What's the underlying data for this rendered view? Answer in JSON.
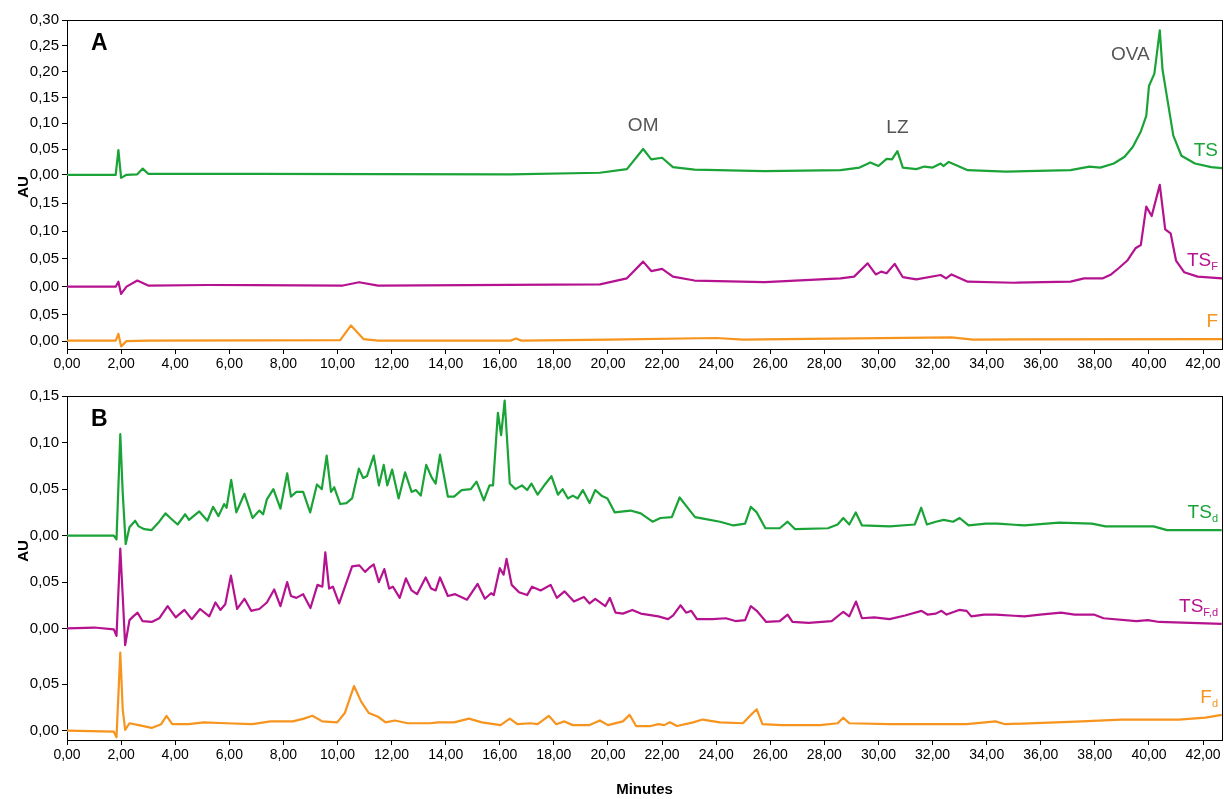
{
  "chart_data": [
    {
      "type": "line",
      "ylabel": "AU",
      "annotations": [
        "A",
        {
          "text": "OM",
          "x": 21.3,
          "y": 0.05
        },
        {
          "text": "LZ",
          "x": 30.7,
          "y": 0.046
        },
        {
          "text": "OVA",
          "x": 40.4,
          "y": 0.28
        }
      ],
      "xlim": [
        0,
        42.7
      ],
      "ylim": [
        -0.012,
        0.3
      ],
      "yticks": [
        {
          "value": 0,
          "label": "0,00"
        },
        {
          "value": 0.05,
          "label": "0,05"
        },
        {
          "value": 0.1,
          "label": "0,10"
        },
        {
          "value": 0.15,
          "label": "0,15"
        },
        {
          "value": 0.2,
          "label": "0,20"
        },
        {
          "value": 0.25,
          "label": "0,25"
        },
        {
          "value": 0.3,
          "label": "0,30"
        }
      ],
      "tick_labels": "y",
      "series": [
        {
          "name": "TS",
          "color": "#1aa336",
          "x": [
            0,
            1.8,
            1.9,
            2.0,
            2.2,
            2.6,
            2.8,
            3.0,
            16.4,
            19.7,
            20.7,
            21.3,
            21.6,
            22.0,
            22.4,
            23.2,
            25.8,
            28.6,
            29.3,
            29.7,
            30.0,
            30.3,
            30.5,
            30.7,
            30.9,
            31.4,
            31.7,
            32.0,
            32.3,
            32.4,
            32.6,
            33.3,
            34.7,
            37.1,
            37.8,
            38.2,
            38.7,
            39.1,
            39.4,
            39.7,
            39.9,
            40.0,
            40.2,
            40.4,
            40.5,
            40.7,
            40.9,
            41.2,
            41.7,
            42.3,
            42.7
          ],
          "values": [
            0,
            0,
            0.048,
            -0.006,
            0,
            0.001,
            0.012,
            0.002,
            0.001,
            0.004,
            0.011,
            0.05,
            0.03,
            0.033,
            0.015,
            0.01,
            0.007,
            0.009,
            0.014,
            0.024,
            0.017,
            0.031,
            0.03,
            0.046,
            0.014,
            0.011,
            0.016,
            0.014,
            0.022,
            0.017,
            0.025,
            0.009,
            0.006,
            0.009,
            0.016,
            0.014,
            0.022,
            0.035,
            0.054,
            0.084,
            0.114,
            0.172,
            0.196,
            0.28,
            0.204,
            0.14,
            0.076,
            0.037,
            0.022,
            0.015,
            0.013
          ]
        }
      ]
    },
    {
      "type": "line",
      "xlim": [
        0,
        42.7
      ],
      "ylim": [
        -0.015,
        0.19
      ],
      "yticks": [
        {
          "value": 0,
          "label": "0,00"
        },
        {
          "value": 0.05,
          "label": "0,05"
        },
        {
          "value": 0.1,
          "label": "0,10"
        },
        {
          "value": 0.15,
          "label": "0,15"
        }
      ],
      "tick_labels": "y",
      "series": [
        {
          "name": "TS$_{F}$",
          "color": "#b5128f",
          "x": [
            0,
            1.8,
            1.9,
            2.0,
            2.2,
            2.6,
            3.0,
            5.2,
            10.2,
            10.8,
            11.5,
            19.7,
            20.7,
            21.3,
            21.6,
            22.0,
            22.4,
            23.2,
            25.8,
            28.6,
            29.1,
            29.6,
            29.9,
            30.1,
            30.3,
            30.6,
            30.9,
            31.4,
            32.3,
            32.5,
            32.7,
            33.3,
            35.0,
            37.1,
            37.6,
            38.3,
            38.6,
            38.9,
            39.2,
            39.5,
            39.7,
            39.9,
            40.1,
            40.4,
            40.6,
            40.8,
            41.0,
            41.3,
            41.8,
            42.7
          ],
          "values": [
            0,
            0,
            0.009,
            -0.013,
            0,
            0.011,
            0.002,
            0.003,
            0.002,
            0.008,
            0.002,
            0.004,
            0.015,
            0.045,
            0.028,
            0.032,
            0.018,
            0.011,
            0.008,
            0.015,
            0.018,
            0.042,
            0.022,
            0.027,
            0.024,
            0.041,
            0.017,
            0.013,
            0.021,
            0.015,
            0.022,
            0.009,
            0.007,
            0.009,
            0.015,
            0.015,
            0.022,
            0.034,
            0.047,
            0.069,
            0.075,
            0.144,
            0.127,
            0.183,
            0.103,
            0.096,
            0.047,
            0.026,
            0.018,
            0.015
          ]
        }
      ]
    },
    {
      "type": "line",
      "xlim": [
        0,
        42.7
      ],
      "xticks": [
        {
          "value": 0,
          "label": "0,00"
        },
        {
          "value": 2,
          "label": "2,00"
        },
        {
          "value": 4,
          "label": "4,00"
        },
        {
          "value": 6,
          "label": "6,00"
        },
        {
          "value": 8,
          "label": "8,00"
        },
        {
          "value": 10,
          "label": "10,00"
        },
        {
          "value": 12,
          "label": "12,00"
        },
        {
          "value": 14,
          "label": "14,00"
        },
        {
          "value": 16,
          "label": "16,00"
        },
        {
          "value": 18,
          "label": "18,00"
        },
        {
          "value": 20,
          "label": "20,00"
        },
        {
          "value": 22,
          "label": "22,00"
        },
        {
          "value": 24,
          "label": "24,00"
        },
        {
          "value": 26,
          "label": "26,00"
        },
        {
          "value": 28,
          "label": "28,00"
        },
        {
          "value": 30,
          "label": "30,00"
        },
        {
          "value": 32,
          "label": "32,00"
        },
        {
          "value": 34,
          "label": "34,00"
        },
        {
          "value": 36,
          "label": "36,00"
        },
        {
          "value": 38,
          "label": "38,00"
        },
        {
          "value": 40,
          "label": "40,00"
        },
        {
          "value": 42,
          "label": "42,00"
        }
      ],
      "ylim": [
        -0.015,
        0.088
      ],
      "yticks": [
        {
          "value": 0,
          "label": "0,00"
        },
        {
          "value": 0.05,
          "label": "0,05"
        }
      ],
      "series": [
        {
          "name": "F",
          "color": "#f7941d",
          "x": [
            0,
            1.8,
            1.9,
            2.0,
            2.2,
            3.0,
            10.1,
            10.5,
            10.96,
            11.5,
            16.4,
            16.6,
            16.8,
            20.0,
            24.0,
            25.0,
            32.7,
            33.5,
            42.7
          ],
          "values": [
            0.001,
            0.001,
            0.014,
            -0.01,
            0,
            0.001,
            0.002,
            0.03,
            0.004,
            0.001,
            0.001,
            0.005,
            0.001,
            0.003,
            0.006,
            0.003,
            0.007,
            0.003,
            0.004
          ]
        }
      ]
    },
    {
      "type": "line",
      "ylabel": "AU",
      "annotations": [
        "B"
      ],
      "xlim": [
        0,
        42.7
      ],
      "ylim": [
        -0.01,
        0.15
      ],
      "yticks": [
        {
          "value": 0,
          "label": "0,00"
        },
        {
          "value": 0.05,
          "label": "0,05"
        },
        {
          "value": 0.1,
          "label": "0,10"
        },
        {
          "value": 0.15,
          "label": "0,15"
        }
      ],
      "tick_labels": "y",
      "series": [
        {
          "name": "TS$_{d}$",
          "color": "#1aa336",
          "x": [
            0,
            1.73,
            1.83,
            1.97,
            2.06,
            2.17,
            2.31,
            2.52,
            2.65,
            2.86,
            3.13,
            3.41,
            3.64,
            3.82,
            4.09,
            4.37,
            4.51,
            4.89,
            5.19,
            5.4,
            5.6,
            5.81,
            5.9,
            6.07,
            6.26,
            6.56,
            6.86,
            7.11,
            7.25,
            7.39,
            7.63,
            7.89,
            8.14,
            8.28,
            8.48,
            8.73,
            8.99,
            9.24,
            9.42,
            9.6,
            9.76,
            9.88,
            10.1,
            10.33,
            10.54,
            10.79,
            10.95,
            11.09,
            11.34,
            11.53,
            11.71,
            11.84,
            12.02,
            12.26,
            12.5,
            12.74,
            12.9,
            13.08,
            13.28,
            13.49,
            13.63,
            13.79,
            14.08,
            14.31,
            14.59,
            14.93,
            15.14,
            15.41,
            15.62,
            15.75,
            15.93,
            16.05,
            16.18,
            16.37,
            16.58,
            16.82,
            17.01,
            17.17,
            17.4,
            17.67,
            17.91,
            18.15,
            18.32,
            18.52,
            18.7,
            18.88,
            19.07,
            19.32,
            19.53,
            19.76,
            19.98,
            20.25,
            20.83,
            21.21,
            21.65,
            21.94,
            22.36,
            22.65,
            23.0,
            23.22,
            23.57,
            24.14,
            24.64,
            25.07,
            25.28,
            25.5,
            25.82,
            26.35,
            26.64,
            26.92,
            28.13,
            28.49,
            28.7,
            28.92,
            29.16,
            29.39,
            30.41,
            31.34,
            31.58,
            31.79,
            32.12,
            32.41,
            32.76,
            33.0,
            33.33,
            33.97,
            34.4,
            35.4,
            36.68,
            37.89,
            38.39,
            40.17,
            40.67,
            42.69
          ],
          "values": [
            0,
            0,
            -0.004,
            0.109,
            0.046,
            -0.009,
            0.009,
            0.016,
            0.01,
            0.007,
            0.006,
            0.015,
            0.024,
            0.019,
            0.012,
            0.023,
            0.017,
            0.026,
            0.016,
            0.031,
            0.021,
            0.034,
            0.03,
            0.06,
            0.025,
            0.045,
            0.019,
            0.027,
            0.023,
            0.039,
            0.05,
            0.029,
            0.067,
            0.042,
            0.047,
            0.047,
            0.025,
            0.055,
            0.05,
            0.086,
            0.047,
            0.052,
            0.034,
            0.035,
            0.04,
            0.072,
            0.062,
            0.064,
            0.086,
            0.054,
            0.076,
            0.054,
            0.071,
            0.04,
            0.068,
            0.047,
            0.049,
            0.043,
            0.076,
            0.062,
            0.056,
            0.087,
            0.042,
            0.042,
            0.049,
            0.05,
            0.058,
            0.038,
            0.054,
            0.054,
            0.132,
            0.108,
            0.145,
            0.056,
            0.05,
            0.054,
            0.049,
            0.056,
            0.044,
            0.055,
            0.064,
            0.044,
            0.05,
            0.04,
            0.043,
            0.04,
            0.049,
            0.035,
            0.049,
            0.043,
            0.04,
            0.025,
            0.027,
            0.024,
            0.015,
            0.019,
            0.02,
            0.041,
            0.028,
            0.02,
            0.018,
            0.015,
            0.011,
            0.013,
            0.031,
            0.025,
            0.008,
            0.008,
            0.015,
            0.007,
            0.008,
            0.012,
            0.019,
            0.012,
            0.025,
            0.011,
            0.01,
            0.012,
            0.03,
            0.012,
            0.015,
            0.017,
            0.015,
            0.019,
            0.011,
            0.013,
            0.013,
            0.011,
            0.014,
            0.013,
            0.01,
            0.01,
            0.006,
            0.006
          ]
        }
      ]
    },
    {
      "type": "line",
      "xlim": [
        0,
        42.7
      ],
      "ylim": [
        -0.02,
        0.09
      ],
      "yticks": [
        {
          "value": 0,
          "label": "0,00"
        },
        {
          "value": 0.05,
          "label": "0,05"
        }
      ],
      "tick_labels": "y",
      "series": [
        {
          "name": "TS$_{F,d}$",
          "color": "#b5128f",
          "x": [
            0,
            1.01,
            1.73,
            1.83,
            1.97,
            2.06,
            2.15,
            2.31,
            2.45,
            2.61,
            2.79,
            3.13,
            3.41,
            3.72,
            4.02,
            4.34,
            4.61,
            4.92,
            5.26,
            5.49,
            5.67,
            5.85,
            6.06,
            6.29,
            6.56,
            6.81,
            7.11,
            7.39,
            7.66,
            7.89,
            8.14,
            8.28,
            8.48,
            8.73,
            9.0,
            9.26,
            9.44,
            9.55,
            9.69,
            9.83,
            10.06,
            10.54,
            10.81,
            11.02,
            11.16,
            11.34,
            11.53,
            11.73,
            11.91,
            12.05,
            12.3,
            12.53,
            12.74,
            12.94,
            13.26,
            13.46,
            13.63,
            13.79,
            14.08,
            14.35,
            14.79,
            15.18,
            15.45,
            15.68,
            15.78,
            16.0,
            16.14,
            16.25,
            16.44,
            16.71,
            17.01,
            17.19,
            17.51,
            17.88,
            18.11,
            18.39,
            18.74,
            19.11,
            19.32,
            19.53,
            19.9,
            20.07,
            20.28,
            20.55,
            20.9,
            21.21,
            21.86,
            22.22,
            22.41,
            22.68,
            22.89,
            23.08,
            23.29,
            23.86,
            24.36,
            24.71,
            25.07,
            25.28,
            25.5,
            25.85,
            26.35,
            26.64,
            26.82,
            27.42,
            28.27,
            28.7,
            28.92,
            29.17,
            29.39,
            29.84,
            30.41,
            30.98,
            31.59,
            31.81,
            32.12,
            32.33,
            32.52,
            32.98,
            33.26,
            33.43,
            33.9,
            34.33,
            35.4,
            35.97,
            36.75,
            37.25,
            37.96,
            38.32,
            39.53,
            39.96,
            40.38,
            42.69
          ],
          "values": [
            0,
            0.001,
            -0.001,
            -0.008,
            0.086,
            0.035,
            -0.018,
            0.009,
            0.013,
            0.017,
            0.008,
            0.007,
            0.011,
            0.024,
            0.012,
            0.02,
            0.01,
            0.021,
            0.013,
            0.028,
            0.02,
            0.026,
            0.057,
            0.021,
            0.032,
            0.019,
            0.021,
            0.028,
            0.042,
            0.024,
            0.05,
            0.035,
            0.033,
            0.037,
            0.022,
            0.047,
            0.045,
            0.082,
            0.043,
            0.045,
            0.027,
            0.067,
            0.068,
            0.061,
            0.065,
            0.069,
            0.05,
            0.064,
            0.043,
            0.045,
            0.033,
            0.054,
            0.041,
            0.037,
            0.055,
            0.043,
            0.041,
            0.055,
            0.035,
            0.037,
            0.031,
            0.048,
            0.032,
            0.038,
            0.036,
            0.065,
            0.058,
            0.075,
            0.047,
            0.039,
            0.036,
            0.045,
            0.041,
            0.047,
            0.033,
            0.04,
            0.029,
            0.034,
            0.027,
            0.032,
            0.024,
            0.033,
            0.017,
            0.016,
            0.02,
            0.016,
            0.013,
            0.01,
            0.014,
            0.025,
            0.017,
            0.019,
            0.01,
            0.01,
            0.011,
            0.008,
            0.009,
            0.024,
            0.019,
            0.007,
            0.008,
            0.015,
            0.007,
            0.006,
            0.008,
            0.018,
            0.013,
            0.029,
            0.011,
            0.012,
            0.01,
            0.014,
            0.019,
            0.015,
            0.016,
            0.019,
            0.015,
            0.02,
            0.019,
            0.013,
            0.015,
            0.015,
            0.013,
            0.015,
            0.017,
            0.015,
            0.015,
            0.011,
            0.008,
            0.009,
            0.007,
            0.005
          ]
        }
      ]
    },
    {
      "type": "line",
      "xlabel": "Minutes",
      "xlim": [
        0,
        42.7
      ],
      "xticks": [
        {
          "value": 0,
          "label": "0,00"
        },
        {
          "value": 2,
          "label": "2,00"
        },
        {
          "value": 4,
          "label": "4,00"
        },
        {
          "value": 6,
          "label": "6,00"
        },
        {
          "value": 8,
          "label": "8,00"
        },
        {
          "value": 10,
          "label": "10,00"
        },
        {
          "value": 12,
          "label": "12,00"
        },
        {
          "value": 14,
          "label": "14,00"
        },
        {
          "value": 16,
          "label": "16,00"
        },
        {
          "value": 18,
          "label": "18,00"
        },
        {
          "value": 20,
          "label": "20,00"
        },
        {
          "value": 22,
          "label": "22,00"
        },
        {
          "value": 24,
          "label": "24,00"
        },
        {
          "value": 26,
          "label": "26,00"
        },
        {
          "value": 28,
          "label": "28,00"
        },
        {
          "value": 30,
          "label": "30,00"
        },
        {
          "value": 32,
          "label": "32,00"
        },
        {
          "value": 34,
          "label": "34,00"
        },
        {
          "value": 36,
          "label": "36,00"
        },
        {
          "value": 38,
          "label": "38,00"
        },
        {
          "value": 40,
          "label": "40,00"
        },
        {
          "value": 42,
          "label": "42,00"
        }
      ],
      "ylim": [
        -0.01,
        0.09
      ],
      "yticks": [
        {
          "value": 0,
          "label": "0,00"
        },
        {
          "value": 0.05,
          "label": "0,05"
        }
      ],
      "series": [
        {
          "name": "F$_{d}$",
          "color": "#f7941d",
          "x": [
            0,
            1.73,
            1.83,
            1.97,
            2.06,
            2.15,
            2.31,
            2.65,
            3.13,
            3.48,
            3.68,
            3.89,
            4.5,
            5.05,
            5.88,
            6.84,
            7.52,
            8.35,
            8.76,
            9.07,
            9.44,
            9.99,
            10.27,
            10.61,
            10.88,
            11.16,
            11.5,
            11.78,
            12.12,
            12.6,
            13.42,
            13.72,
            14.31,
            14.86,
            15.34,
            16.03,
            16.37,
            16.65,
            17.13,
            17.4,
            17.81,
            18.09,
            18.39,
            18.7,
            19.32,
            19.7,
            20.0,
            20.55,
            20.8,
            21.04,
            21.58,
            21.86,
            22.08,
            22.29,
            22.55,
            23.15,
            23.5,
            24.14,
            24.99,
            25.28,
            25.5,
            25.71,
            26.42,
            27.85,
            28.49,
            28.7,
            28.92,
            30.41,
            33.26,
            34.33,
            34.68,
            37.53,
            38.96,
            41.1,
            42.09,
            42.69
          ],
          "values": [
            0,
            -0.001,
            -0.007,
            0.084,
            0.023,
            0.001,
            0.008,
            0.006,
            0.003,
            0.007,
            0.016,
            0.007,
            0.007,
            0.009,
            0.008,
            0.007,
            0.01,
            0.01,
            0.013,
            0.016,
            0.01,
            0.009,
            0.019,
            0.048,
            0.031,
            0.019,
            0.015,
            0.009,
            0.011,
            0.008,
            0.008,
            0.009,
            0.009,
            0.013,
            0.009,
            0.006,
            0.013,
            0.007,
            0.008,
            0.007,
            0.016,
            0.007,
            0.01,
            0.006,
            0.006,
            0.011,
            0.006,
            0.01,
            0.017,
            0.005,
            0.005,
            0.007,
            0.006,
            0.009,
            0.005,
            0.009,
            0.012,
            0.009,
            0.008,
            0.017,
            0.023,
            0.007,
            0.006,
            0.006,
            0.008,
            0.014,
            0.008,
            0.007,
            0.007,
            0.01,
            0.007,
            0.01,
            0.012,
            0.012,
            0.014,
            0.017
          ]
        }
      ]
    }
  ]
}
